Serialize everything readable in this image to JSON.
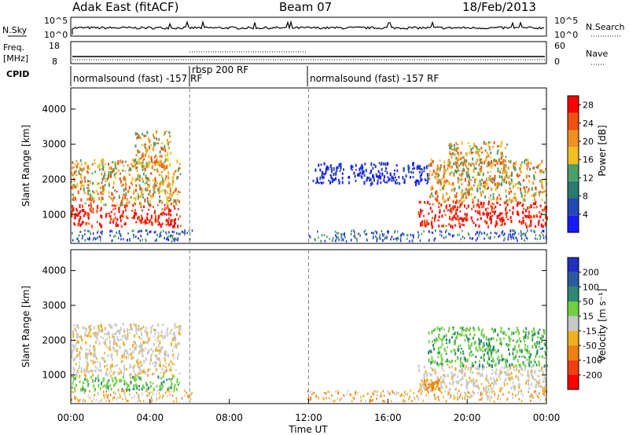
{
  "header": {
    "station": "Adak East (fitACF)",
    "beam": "Beam 07",
    "date": "18/Feb/2013"
  },
  "sky_panel": {
    "left_label": "N.Sky",
    "right_label": "N.Search",
    "left_ticks": [
      "10^5",
      "10^0"
    ],
    "right_ticks": [
      "10^5",
      "10^0"
    ]
  },
  "freq_panel": {
    "left_label_top": "Freq.",
    "left_label_bottom": "[MHz]",
    "right_label": "Nave",
    "left_ticks": [
      "18",
      "8"
    ],
    "right_ticks": [
      "60",
      "0"
    ]
  },
  "cpid": {
    "label": "CPID",
    "segments": [
      {
        "name": "normalsound (fast) -157 RF",
        "start_h": 0,
        "end_h": 6
      },
      {
        "name": "rbsp 200 RF",
        "start_h": 6,
        "end_h": 12
      },
      {
        "name": "normalsound (fast) -157 RF",
        "start_h": 12,
        "end_h": 24
      }
    ]
  },
  "chart_data": [
    {
      "type": "heatmap",
      "title": "Power",
      "xlabel": "Time UT",
      "ylabel": "Slant Range [km]",
      "xlim_hours": [
        0,
        24
      ],
      "ylim_km": [
        180,
        4600
      ],
      "x_tick_labels": [
        "00:00",
        "04:00",
        "08:00",
        "12:00",
        "16:00",
        "20:00",
        "00:00"
      ],
      "y_ticks": [
        1000,
        2000,
        3000,
        4000
      ],
      "colorbar": {
        "label": "Power [dB]",
        "ticks": [
          4,
          8,
          12,
          16,
          20,
          24,
          28
        ],
        "range": [
          0,
          30
        ],
        "colors": [
          "#1a1aff",
          "#2448b8",
          "#2c7a6e",
          "#4aa068",
          "#f0c020",
          "#f09020",
          "#f05010",
          "#ff0000"
        ]
      },
      "dashed_time_markers_h": [
        6,
        12
      ],
      "regions": [
        {
          "t0": 0.0,
          "t1": 5.5,
          "r0": 700,
          "r1": 1300,
          "level": "high",
          "value_db": 28
        },
        {
          "t0": 0.0,
          "t1": 5.5,
          "r0": 1300,
          "r1": 2600,
          "level": "mid",
          "value_db": 18
        },
        {
          "t0": 3.2,
          "t1": 5.0,
          "r0": 2400,
          "r1": 3400,
          "level": "mid",
          "value_db": 16
        },
        {
          "t0": 17.5,
          "t1": 24.0,
          "r0": 700,
          "r1": 1400,
          "level": "high",
          "value_db": 28
        },
        {
          "t0": 18.0,
          "t1": 24.0,
          "r0": 1400,
          "r1": 2600,
          "level": "mid",
          "value_db": 14
        },
        {
          "t0": 19.0,
          "t1": 22.0,
          "r0": 2400,
          "r1": 3100,
          "level": "mid",
          "value_db": 12
        },
        {
          "t0": 12.2,
          "t1": 18.0,
          "r0": 1900,
          "r1": 2500,
          "level": "low",
          "value_db": 6
        }
      ]
    },
    {
      "type": "heatmap",
      "title": "Velocity",
      "xlabel": "Time UT",
      "ylabel": "Slant Range [km]",
      "xlim_hours": [
        0,
        24
      ],
      "ylim_km": [
        180,
        4600
      ],
      "x_tick_labels": [
        "00:00",
        "04:00",
        "08:00",
        "12:00",
        "16:00",
        "20:00",
        "00:00"
      ],
      "y_ticks": [
        1000,
        2000,
        3000,
        4000
      ],
      "colorbar": {
        "label": "Velocity [m s⁻¹]",
        "ticks": [
          "200",
          "100",
          "50",
          "15",
          "-15",
          "-50",
          "-100",
          "-200"
        ],
        "colors": [
          "#2030c0",
          "#2a5aa0",
          "#2c8a70",
          "#70d040",
          "#c8c8c8",
          "#f0b020",
          "#f08010",
          "#f04010",
          "#ff0000"
        ]
      },
      "dashed_time_markers_h": [
        6,
        12
      ],
      "regions": [
        {
          "t0": 0.0,
          "t1": 5.5,
          "r0": 600,
          "r1": 1000,
          "level": "pos",
          "value_ms": 40
        },
        {
          "t0": 0.0,
          "t1": 5.5,
          "r0": 1000,
          "r1": 2500,
          "level": "zero",
          "value_ms": 0
        },
        {
          "t0": 17.5,
          "t1": 24.0,
          "r0": 600,
          "r1": 1300,
          "level": "zero",
          "value_ms": 0
        },
        {
          "t0": 18.0,
          "t1": 24.0,
          "r0": 1300,
          "r1": 2400,
          "level": "pos",
          "value_ms": 30
        },
        {
          "t0": 17.8,
          "t1": 18.6,
          "r0": 600,
          "r1": 900,
          "level": "neg",
          "value_ms": -40
        }
      ]
    }
  ]
}
